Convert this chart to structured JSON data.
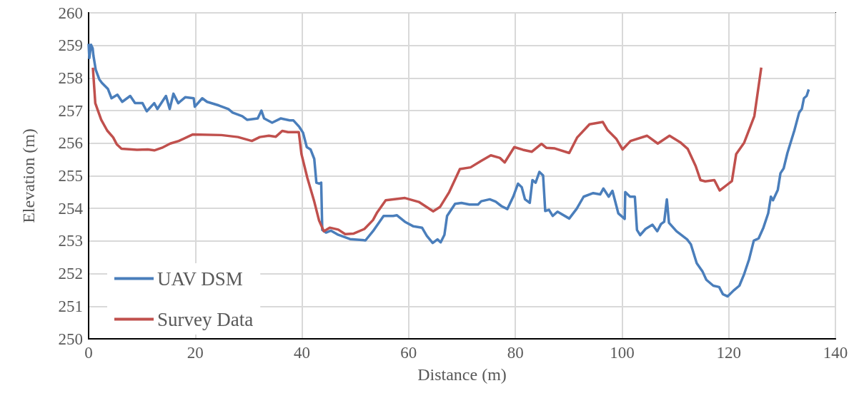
{
  "chart_data": {
    "type": "line",
    "xlabel": "Distance (m)",
    "ylabel": "Elevation (m)",
    "xlim": [
      0,
      140
    ],
    "ylim": [
      250,
      260
    ],
    "xticks": [
      0,
      20,
      40,
      60,
      80,
      100,
      120,
      140
    ],
    "yticks": [
      250,
      251,
      252,
      253,
      254,
      255,
      256,
      257,
      258,
      259,
      260
    ],
    "grid": true,
    "legend": "bottom left",
    "marker": "none",
    "series": [
      {
        "name": "UAV DSM",
        "color": "#4a7ebb",
        "x": [
          0.0,
          0.13,
          0.45,
          0.76,
          0.9,
          1.34,
          2.0,
          2.5,
          3.6,
          4.3,
          5.4,
          6.3,
          7.8,
          8.7,
          10.1,
          10.9,
          12.3,
          12.9,
          14.5,
          15.2,
          15.9,
          16.8,
          18.1,
          19.7,
          19.9,
          21.3,
          22.2,
          24.4,
          26.2,
          27.0,
          28.8,
          29.7,
          31.7,
          32.4,
          32.9,
          34.4,
          36.0,
          37.7,
          38.4,
          39.5,
          40.2,
          40.9,
          41.6,
          42.3,
          42.7,
          43.2,
          43.6,
          43.8,
          44.5,
          45.4,
          46.8,
          49.0,
          51.9,
          53.3,
          55.3,
          57.1,
          57.8,
          59.3,
          60.9,
          62.5,
          63.4,
          64.5,
          65.4,
          66.0,
          66.7,
          67.2,
          68.7,
          69.9,
          71.4,
          73.0,
          73.6,
          75.2,
          76.3,
          77.4,
          78.5,
          79.6,
          80.5,
          81.2,
          81.8,
          82.7,
          83.2,
          83.8,
          84.5,
          85.2,
          85.6,
          86.3,
          87.0,
          87.9,
          90.1,
          91.5,
          92.8,
          94.6,
          95.9,
          96.5,
          97.5,
          98.2,
          99.3,
          100.5,
          100.6,
          101.5,
          102.4,
          102.8,
          103.4,
          104.4,
          105.7,
          106.6,
          107.3,
          107.9,
          108.4,
          108.8,
          110.2,
          112.2,
          112.9,
          114.0,
          115.1,
          115.8,
          117.1,
          118.2,
          118.9,
          119.8,
          120.9,
          122.0,
          122.9,
          123.8,
          124.7,
          125.6,
          126.5,
          127.4,
          127.9,
          128.3,
          129.2,
          129.7,
          130.3,
          131.0,
          132.3,
          133.2,
          133.7,
          134.1,
          134.6,
          135.0
        ],
        "values": [
          259.05,
          258.61,
          259.02,
          258.91,
          258.69,
          258.25,
          257.96,
          257.85,
          257.67,
          257.38,
          257.49,
          257.27,
          257.45,
          257.23,
          257.23,
          256.98,
          257.23,
          257.05,
          257.45,
          257.05,
          257.52,
          257.23,
          257.41,
          257.38,
          257.12,
          257.38,
          257.27,
          257.16,
          257.05,
          256.94,
          256.83,
          256.72,
          256.76,
          257.0,
          256.76,
          256.63,
          256.76,
          256.7,
          256.7,
          256.5,
          256.32,
          255.88,
          255.81,
          255.52,
          254.79,
          254.76,
          254.79,
          253.34,
          253.26,
          253.32,
          253.19,
          253.06,
          253.02,
          253.3,
          253.77,
          253.77,
          253.79,
          253.59,
          253.45,
          253.41,
          253.16,
          252.94,
          253.05,
          252.96,
          253.19,
          253.77,
          254.14,
          254.17,
          254.12,
          254.12,
          254.22,
          254.28,
          254.21,
          254.07,
          253.98,
          254.36,
          254.76,
          254.65,
          254.28,
          254.17,
          254.87,
          254.79,
          255.12,
          255.01,
          253.92,
          253.96,
          253.77,
          253.9,
          253.69,
          253.99,
          254.36,
          254.47,
          254.43,
          254.61,
          254.36,
          254.54,
          253.85,
          253.68,
          254.5,
          254.36,
          254.36,
          253.34,
          253.18,
          253.37,
          253.5,
          253.3,
          253.52,
          253.59,
          254.28,
          253.56,
          253.3,
          253.05,
          252.9,
          252.32,
          252.06,
          251.81,
          251.63,
          251.59,
          251.37,
          251.3,
          251.48,
          251.63,
          251.99,
          252.43,
          253.01,
          253.08,
          253.41,
          253.85,
          254.36,
          254.25,
          254.57,
          255.08,
          255.23,
          255.7,
          256.39,
          256.94,
          257.05,
          257.38,
          257.45,
          257.65
        ]
      },
      {
        "name": "Survey Data",
        "color": "#c0504d",
        "x": [
          0.8,
          1.25,
          2.36,
          3.48,
          4.6,
          5.27,
          6.16,
          9.07,
          11.1,
          12.32,
          13.75,
          15.3,
          16.9,
          19.55,
          24.9,
          28.0,
          30.6,
          32.1,
          33.8,
          35.1,
          36.3,
          37.4,
          39.4,
          39.9,
          41.0,
          42.3,
          43.2,
          44.1,
          45.2,
          46.8,
          48.1,
          49.7,
          51.7,
          53.3,
          54.1,
          55.7,
          59.3,
          61.9,
          64.6,
          65.9,
          67.6,
          69.6,
          71.6,
          73.6,
          75.4,
          77.1,
          78.0,
          79.8,
          81.4,
          83.1,
          84.9,
          85.8,
          87.4,
          90.1,
          91.6,
          93.9,
          96.4,
          97.3,
          98.9,
          100.1,
          101.6,
          104.7,
          106.7,
          108.9,
          110.9,
          112.3,
          113.8,
          114.7,
          115.6,
          117.3,
          118.3,
          120.6,
          121.4,
          122.9,
          124.8,
          126.1
        ],
        "values": [
          258.32,
          257.23,
          256.72,
          256.39,
          256.18,
          255.97,
          255.83,
          255.8,
          255.81,
          255.78,
          255.86,
          255.99,
          256.07,
          256.27,
          256.25,
          256.19,
          256.07,
          256.19,
          256.23,
          256.2,
          256.38,
          256.34,
          256.34,
          255.67,
          254.94,
          254.21,
          253.63,
          253.3,
          253.41,
          253.35,
          253.21,
          253.23,
          253.37,
          253.64,
          253.88,
          254.25,
          254.32,
          254.2,
          253.91,
          254.05,
          254.5,
          255.21,
          255.26,
          255.46,
          255.63,
          255.55,
          255.41,
          255.88,
          255.8,
          255.74,
          255.98,
          255.86,
          255.84,
          255.7,
          256.18,
          256.58,
          256.65,
          256.4,
          256.14,
          255.81,
          256.07,
          256.23,
          255.99,
          256.23,
          256.03,
          255.83,
          255.3,
          254.87,
          254.83,
          254.87,
          254.55,
          254.84,
          255.67,
          256.02,
          256.83,
          258.32
        ]
      }
    ]
  }
}
